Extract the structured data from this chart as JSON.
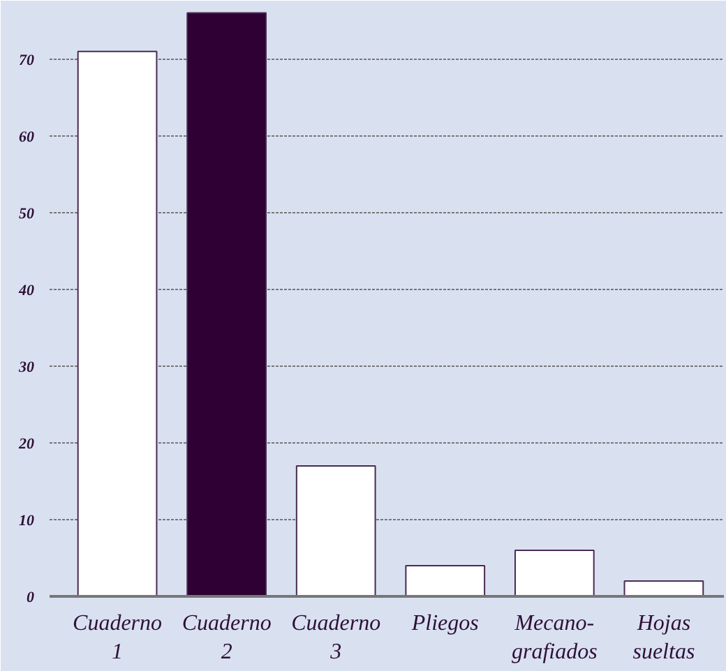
{
  "chart_data": {
    "type": "bar",
    "categories": [
      "Cuaderno\n1",
      "Cuaderno\n2",
      "Cuaderno\n3",
      "Pliegos",
      "Mecano-\ngrafiados",
      "Hojas\nsueltas"
    ],
    "values": [
      71,
      76,
      17,
      4,
      6,
      2
    ],
    "colors": [
      "#ffffff",
      "#2e0033",
      "#ffffff",
      "#ffffff",
      "#ffffff",
      "#ffffff"
    ],
    "ylim": [
      0,
      77.6
    ],
    "yticks": [
      0,
      10,
      20,
      30,
      40,
      50,
      60,
      70
    ],
    "grid": "y"
  }
}
